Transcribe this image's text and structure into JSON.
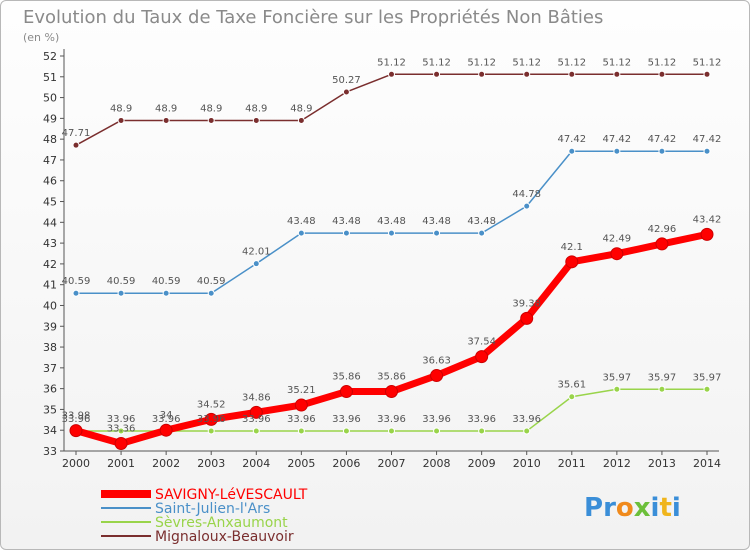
{
  "chart_data": {
    "type": "line",
    "title": "Evolution du Taux de Taxe Foncière sur les Propriétés Non Bâties",
    "unit_label": "(en %)",
    "xlabel": "",
    "ylabel": "(en %)",
    "x": [
      "2000",
      "2001",
      "2002",
      "2003",
      "2004",
      "2005",
      "2006",
      "2007",
      "2008",
      "2009",
      "2010",
      "2011",
      "2012",
      "2013",
      "2014"
    ],
    "ylim": [
      33,
      52
    ],
    "yticks": [
      33,
      34,
      35,
      36,
      37,
      38,
      39,
      40,
      41,
      42,
      43,
      44,
      45,
      46,
      47,
      48,
      49,
      50,
      51,
      52
    ],
    "grid": false,
    "legend_position": "bottom-left",
    "series": [
      {
        "name": "SAVIGNY-LéVESCAULT",
        "color": "#ff0000",
        "values": [
          33.98,
          33.36,
          34.0,
          34.52,
          34.86,
          35.21,
          35.86,
          35.86,
          36.63,
          37.54,
          39.38,
          42.1,
          42.49,
          42.96,
          43.42
        ],
        "labels": [
          "33.98",
          "33.36",
          "34",
          "34.52",
          "34.86",
          "35.21",
          "35.86",
          "35.86",
          "36.63",
          "37.54",
          "39.38",
          "42.1",
          "42.49",
          "42.96",
          "43.42"
        ]
      },
      {
        "name": "Saint-Julien-l'Ars",
        "color": "#4a90c8",
        "values": [
          40.59,
          40.59,
          40.59,
          40.59,
          42.01,
          43.48,
          43.48,
          43.48,
          43.48,
          43.48,
          44.78,
          47.42,
          47.42,
          47.42,
          47.42
        ],
        "labels": [
          "40.59",
          "40.59",
          "40.59",
          "40.59",
          "42.01",
          "43.48",
          "43.48",
          "43.48",
          "43.48",
          "43.48",
          "44.78",
          "47.42",
          "47.42",
          "47.42",
          "47.42"
        ]
      },
      {
        "name": "Sèvres-Anxaumont",
        "color": "#99d44a",
        "values": [
          33.96,
          33.96,
          33.96,
          33.96,
          33.96,
          33.96,
          33.96,
          33.96,
          33.96,
          33.96,
          33.96,
          35.61,
          35.97,
          35.97,
          35.97
        ],
        "labels": [
          "33.96",
          "33.96",
          "33.96",
          "33.96",
          "33.96",
          "33.96",
          "33.96",
          "33.96",
          "33.96",
          "33.96",
          "33.96",
          "35.61",
          "35.97",
          "35.97",
          "35.97"
        ]
      },
      {
        "name": "Mignaloux-Beauvoir",
        "color": "#7a2e2e",
        "values": [
          47.71,
          48.9,
          48.9,
          48.9,
          48.9,
          48.9,
          50.27,
          51.12,
          51.12,
          51.12,
          51.12,
          51.12,
          51.12,
          51.12,
          51.12
        ],
        "labels": [
          "47.71",
          "48.9",
          "48.9",
          "48.9",
          "48.9",
          "48.9",
          "50.27",
          "51.12",
          "51.12",
          "51.12",
          "51.12",
          "51.12",
          "51.12",
          "51.12",
          "51.12"
        ]
      }
    ]
  },
  "logo": {
    "text": "Proxiti"
  }
}
